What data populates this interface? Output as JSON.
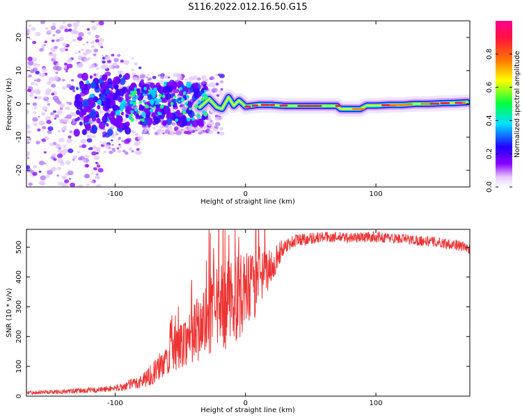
{
  "title": "S116.2022.012.16.50.G15",
  "chart_data": [
    {
      "type": "heatmap",
      "xlabel": "Height of straight line (km)",
      "ylabel": "Frequency (Hz)",
      "xlim": [
        -168,
        172
      ],
      "ylim": [
        -25,
        25
      ],
      "x_ticks": [
        -100,
        0,
        100
      ],
      "y_ticks": [
        -20,
        -10,
        0,
        10,
        20
      ],
      "colorbar": {
        "label": "Normalized spectral amplitude",
        "range": [
          0,
          1
        ],
        "ticks": [
          "0.0",
          "0.2",
          "0.4",
          "0.6",
          "0.8"
        ],
        "colors": [
          "#ffffff",
          "#e6c8ff",
          "#8a00ff",
          "#2000ff",
          "#00e0ff",
          "#00ff40",
          "#ffff00",
          "#ff7a00",
          "#ff1040",
          "#ff0090"
        ]
      },
      "ridge": {
        "x": [
          -35,
          -28,
          -22,
          -18,
          -13,
          -9,
          -5,
          -2,
          0,
          10,
          20,
          30,
          40,
          50,
          60,
          70,
          73,
          80,
          88,
          93,
          100,
          110,
          120,
          130,
          140,
          150,
          160,
          170
        ],
        "y": [
          -1.0,
          1.5,
          -1.0,
          -1.5,
          2.0,
          -0.5,
          1.0,
          0.0,
          -0.8,
          -0.3,
          -0.3,
          -0.6,
          -0.6,
          -0.6,
          -0.6,
          -0.6,
          -1.5,
          -1.5,
          -1.5,
          -0.5,
          -0.5,
          -0.3,
          -0.3,
          0.0,
          0.0,
          0.2,
          0.3,
          0.5
        ]
      }
    },
    {
      "type": "line",
      "xlabel": "Height of straight line (km)",
      "ylabel": "SNR (10 * v/v)",
      "xlim": [
        -168,
        172
      ],
      "ylim": [
        0,
        560
      ],
      "x_ticks": [
        -100,
        0,
        100
      ],
      "y_ticks": [
        0,
        100,
        200,
        300,
        400,
        500
      ],
      "color": "#ee3333",
      "envelope": {
        "x": [
          -168,
          -140,
          -110,
          -95,
          -80,
          -70,
          -60,
          -50,
          -40,
          -30,
          -20,
          -10,
          0,
          10,
          20,
          30,
          40,
          60,
          80,
          100,
          120,
          140,
          160,
          172
        ],
        "y": [
          12,
          15,
          22,
          30,
          50,
          80,
          125,
          170,
          215,
          250,
          290,
          320,
          345,
          380,
          440,
          505,
          525,
          535,
          532,
          535,
          528,
          520,
          510,
          495
        ]
      },
      "noise_amplitude": {
        "x": [
          -168,
          -100,
          -80,
          -60,
          -40,
          -20,
          0,
          15,
          30,
          60,
          100,
          172
        ],
        "y": [
          6,
          10,
          25,
          55,
          100,
          150,
          140,
          80,
          25,
          18,
          18,
          18
        ]
      }
    }
  ]
}
